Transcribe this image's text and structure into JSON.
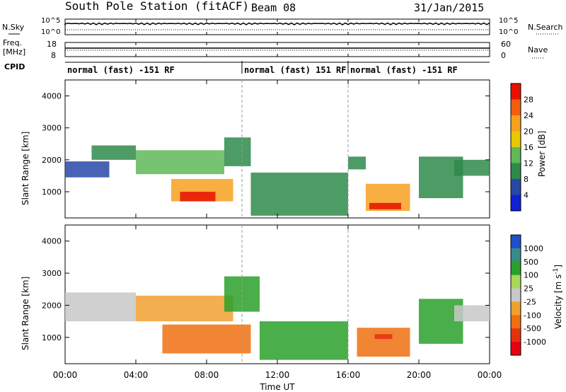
{
  "header": {
    "title": "South Pole Station (fitACF)",
    "beam": "Beam 08",
    "date": "31/Jan/2015"
  },
  "top_panels": {
    "nsky": {
      "label": "N.Sky",
      "tick_top": "10^5",
      "tick_bottom": "10^0"
    },
    "nsearch": {
      "label": "N.Search",
      "tick_top": "10^5",
      "tick_bottom": "10^0"
    },
    "freq": {
      "label_line1": "Freq.",
      "label_line2": "[MHz]",
      "tick_top": "18",
      "tick_bottom": "8"
    },
    "nave": {
      "label": "Nave",
      "tick_top": "60",
      "tick_bottom": "0"
    },
    "cpid": {
      "label": "CPID",
      "segments": [
        {
          "text": "normal (fast) -151 RF",
          "start_hour": 0,
          "end_hour": 10
        },
        {
          "text": "normal (fast) 151 RF",
          "start_hour": 10,
          "end_hour": 16
        },
        {
          "text": "normal (fast) -151 RF",
          "start_hour": 16,
          "end_hour": 24
        }
      ]
    }
  },
  "x_axis": {
    "label": "Time UT",
    "ticks": [
      "00:00",
      "04:00",
      "08:00",
      "12:00",
      "16:00",
      "20:00",
      "00:00"
    ]
  },
  "chart_data": [
    {
      "type": "heatmap",
      "title": "Power",
      "xlabel": "Time UT",
      "ylabel": "Slant Range [km]",
      "xlim_hours": [
        0,
        24
      ],
      "ylim": [
        180,
        4500
      ],
      "y_ticks": [
        1000,
        2000,
        3000,
        4000
      ],
      "colorbar": {
        "label": "Power [dB]",
        "tick_labels": [
          "4",
          "8",
          "12",
          "16",
          "20",
          "24",
          "28"
        ],
        "range": [
          0,
          32
        ],
        "colors": [
          "#1020d8",
          "#2848a8",
          "#2e8a4a",
          "#60b858",
          "#e8c800",
          "#f8a020",
          "#f06010",
          "#e81000"
        ]
      },
      "echo_regions": [
        {
          "start_hour": 0.0,
          "end_hour": 2.5,
          "range_min": 1450,
          "range_max": 1950,
          "value_db": 6
        },
        {
          "start_hour": 1.5,
          "end_hour": 4.0,
          "range_min": 2000,
          "range_max": 2450,
          "value_db": 8
        },
        {
          "start_hour": 4.0,
          "end_hour": 9.0,
          "range_min": 1550,
          "range_max": 2300,
          "value_db": 14
        },
        {
          "start_hour": 6.0,
          "end_hour": 9.5,
          "range_min": 700,
          "range_max": 1400,
          "value_db": 22
        },
        {
          "start_hour": 6.5,
          "end_hour": 8.5,
          "range_min": 700,
          "range_max": 1000,
          "value_db": 28
        },
        {
          "start_hour": 9.0,
          "end_hour": 10.5,
          "range_min": 1800,
          "range_max": 2700,
          "value_db": 10
        },
        {
          "start_hour": 10.5,
          "end_hour": 16.0,
          "range_min": 250,
          "range_max": 1600,
          "value_db": 9
        },
        {
          "start_hour": 16.0,
          "end_hour": 17.0,
          "range_min": 1700,
          "range_max": 2100,
          "value_db": 8
        },
        {
          "start_hour": 17.0,
          "end_hour": 19.5,
          "range_min": 400,
          "range_max": 1250,
          "value_db": 20
        },
        {
          "start_hour": 17.2,
          "end_hour": 19.0,
          "range_min": 450,
          "range_max": 650,
          "value_db": 28
        },
        {
          "start_hour": 20.0,
          "end_hour": 22.5,
          "range_min": 800,
          "range_max": 2100,
          "value_db": 10
        },
        {
          "start_hour": 22.0,
          "end_hour": 24.0,
          "range_min": 1500,
          "range_max": 2000,
          "value_db": 8
        }
      ]
    },
    {
      "type": "heatmap",
      "title": "Velocity",
      "xlabel": "Time UT",
      "ylabel": "Slant Range [km]",
      "xlim_hours": [
        0,
        24
      ],
      "ylim": [
        180,
        4500
      ],
      "y_ticks": [
        1000,
        2000,
        3000,
        4000
      ],
      "colorbar": {
        "label_main": "Velocity",
        "label_unit": "[m s",
        "label_exp": "-1",
        "label_close": "]",
        "tick_labels": [
          "1000",
          "500",
          "100",
          "25",
          "-25",
          "-100",
          "-500",
          "-1000"
        ],
        "colors": [
          "#2050c8",
          "#3a8a8a",
          "#2aa02a",
          "#a8d858",
          "#c8c8c8",
          "#f0a030",
          "#f07010",
          "#e83010",
          "#e80010"
        ]
      },
      "echo_regions": [
        {
          "start_hour": 0.0,
          "end_hour": 4.0,
          "range_min": 1500,
          "range_max": 2400,
          "value_ms": 0
        },
        {
          "start_hour": 4.0,
          "end_hour": 9.5,
          "range_min": 1500,
          "range_max": 2300,
          "value_ms": -60
        },
        {
          "start_hour": 5.5,
          "end_hour": 10.5,
          "range_min": 500,
          "range_max": 1400,
          "value_ms": -200
        },
        {
          "start_hour": 9.0,
          "end_hour": 11.0,
          "range_min": 1800,
          "range_max": 2900,
          "value_ms": 300
        },
        {
          "start_hour": 11.0,
          "end_hour": 16.0,
          "range_min": 300,
          "range_max": 1500,
          "value_ms": 150
        },
        {
          "start_hour": 16.5,
          "end_hour": 19.5,
          "range_min": 400,
          "range_max": 1300,
          "value_ms": -300
        },
        {
          "start_hour": 17.5,
          "end_hour": 18.5,
          "range_min": 950,
          "range_max": 1100,
          "value_ms": -1000
        },
        {
          "start_hour": 20.0,
          "end_hour": 22.5,
          "range_min": 800,
          "range_max": 2200,
          "value_ms": 200
        },
        {
          "start_hour": 22.0,
          "end_hour": 24.0,
          "range_min": 1500,
          "range_max": 2000,
          "value_ms": 0
        }
      ]
    }
  ]
}
